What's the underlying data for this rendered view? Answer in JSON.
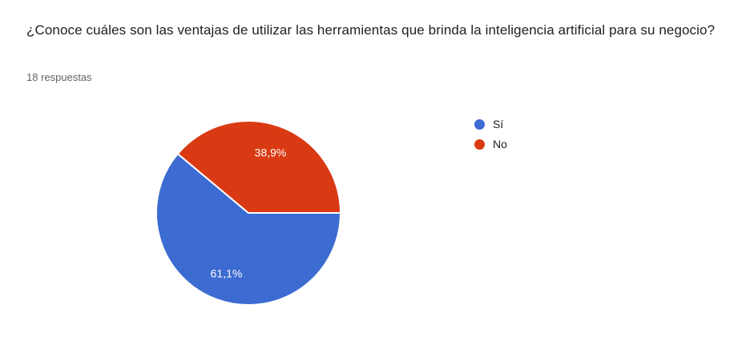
{
  "question": {
    "title": "¿Conoce cuáles son las ventajas de utilizar las herramientas que brinda la inteligencia artificial para su negocio?",
    "responses_label": "18 respuestas"
  },
  "chart_data": {
    "type": "pie",
    "title": "¿Conoce cuáles son las ventajas de utilizar las herramientas que brinda la inteligencia artificial para su negocio?",
    "subtitle": "18 respuestas",
    "legend_position": "right",
    "start_angle": "east",
    "direction": "clockwise",
    "slice_divider_color": "#ffffff",
    "value_label_color": "#ffffff",
    "categories": [
      "Sí",
      "No"
    ],
    "values": [
      61.1,
      38.9
    ],
    "slices": [
      {
        "label": "Sí",
        "value": 61.1,
        "display": "61,1%",
        "color": "#3c6bd1"
      },
      {
        "label": "No",
        "value": 38.9,
        "display": "38,9%",
        "color": "#da3a13"
      }
    ]
  }
}
